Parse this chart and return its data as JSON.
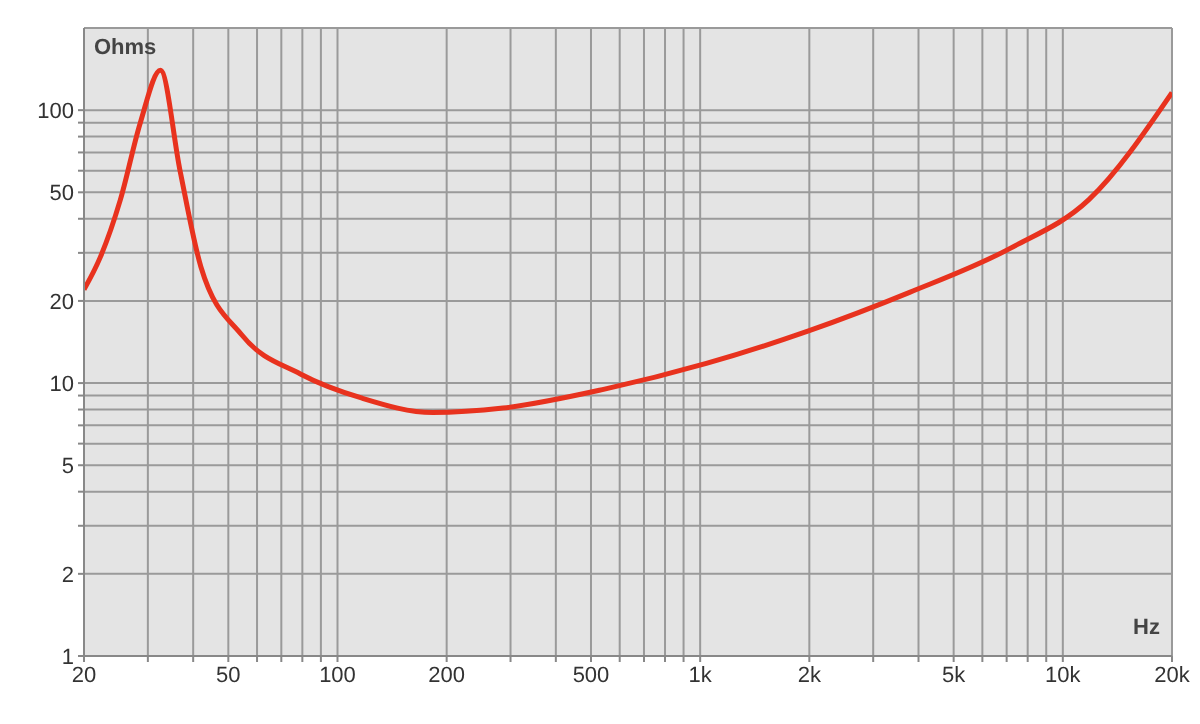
{
  "chart_data": {
    "type": "line",
    "xlabel": "Hz",
    "ylabel": "Ohms",
    "log": "xy",
    "grid": true,
    "marker": "none",
    "line_style": "solid",
    "x": [
      20,
      22.2,
      25.2,
      28.6,
      32.5,
      36.8,
      42,
      54.5,
      79,
      117,
      183,
      286,
      545,
      1040,
      1981,
      3780,
      7200,
      11800,
      20000
    ],
    "series": [
      {
        "color": "#e8321e",
        "values": [
          22,
          29,
          47,
          90,
          140,
          60,
          26.7,
          15,
          10.8,
          8.8,
          7.8,
          8.1,
          9.5,
          11.8,
          15.5,
          21.5,
          31.3,
          47,
          116
        ]
      }
    ],
    "xlim": [
      20,
      20000
    ],
    "ylim": [
      1,
      200
    ],
    "xticks": [
      20,
      {
        "value": 30,
        "label": null
      },
      {
        "value": 40,
        "label": null
      },
      50,
      {
        "value": 60,
        "label": null
      },
      {
        "value": 70,
        "label": null
      },
      {
        "value": 80,
        "label": null
      },
      {
        "value": 90,
        "label": null
      },
      100,
      200,
      {
        "value": 300,
        "label": null
      },
      {
        "value": 400,
        "label": null
      },
      500,
      {
        "value": 600,
        "label": null
      },
      {
        "value": 700,
        "label": null
      },
      {
        "value": 800,
        "label": null
      },
      {
        "value": 900,
        "label": null
      },
      {
        "value": 1000,
        "label": "1k"
      },
      {
        "value": 2000,
        "label": "2k"
      },
      {
        "value": 3000,
        "label": null
      },
      {
        "value": 4000,
        "label": null
      },
      {
        "value": 5000,
        "label": "5k"
      },
      {
        "value": 6000,
        "label": null
      },
      {
        "value": 7000,
        "label": null
      },
      {
        "value": 8000,
        "label": null
      },
      {
        "value": 9000,
        "label": null
      },
      {
        "value": 10000,
        "label": "10k"
      },
      {
        "value": 20000,
        "label": "20k"
      }
    ],
    "yticks": [
      1,
      2,
      {
        "value": 3,
        "label": null
      },
      {
        "value": 4,
        "label": null
      },
      5,
      {
        "value": 6,
        "label": null
      },
      {
        "value": 7,
        "label": null
      },
      {
        "value": 8,
        "label": null
      },
      {
        "value": 9,
        "label": null
      },
      10,
      20,
      {
        "value": 30,
        "label": null
      },
      {
        "value": 40,
        "label": null
      },
      50,
      {
        "value": 60,
        "label": null
      },
      {
        "value": 70,
        "label": null
      },
      {
        "value": 80,
        "label": null
      },
      {
        "value": 90,
        "label": null
      },
      100
    ]
  }
}
